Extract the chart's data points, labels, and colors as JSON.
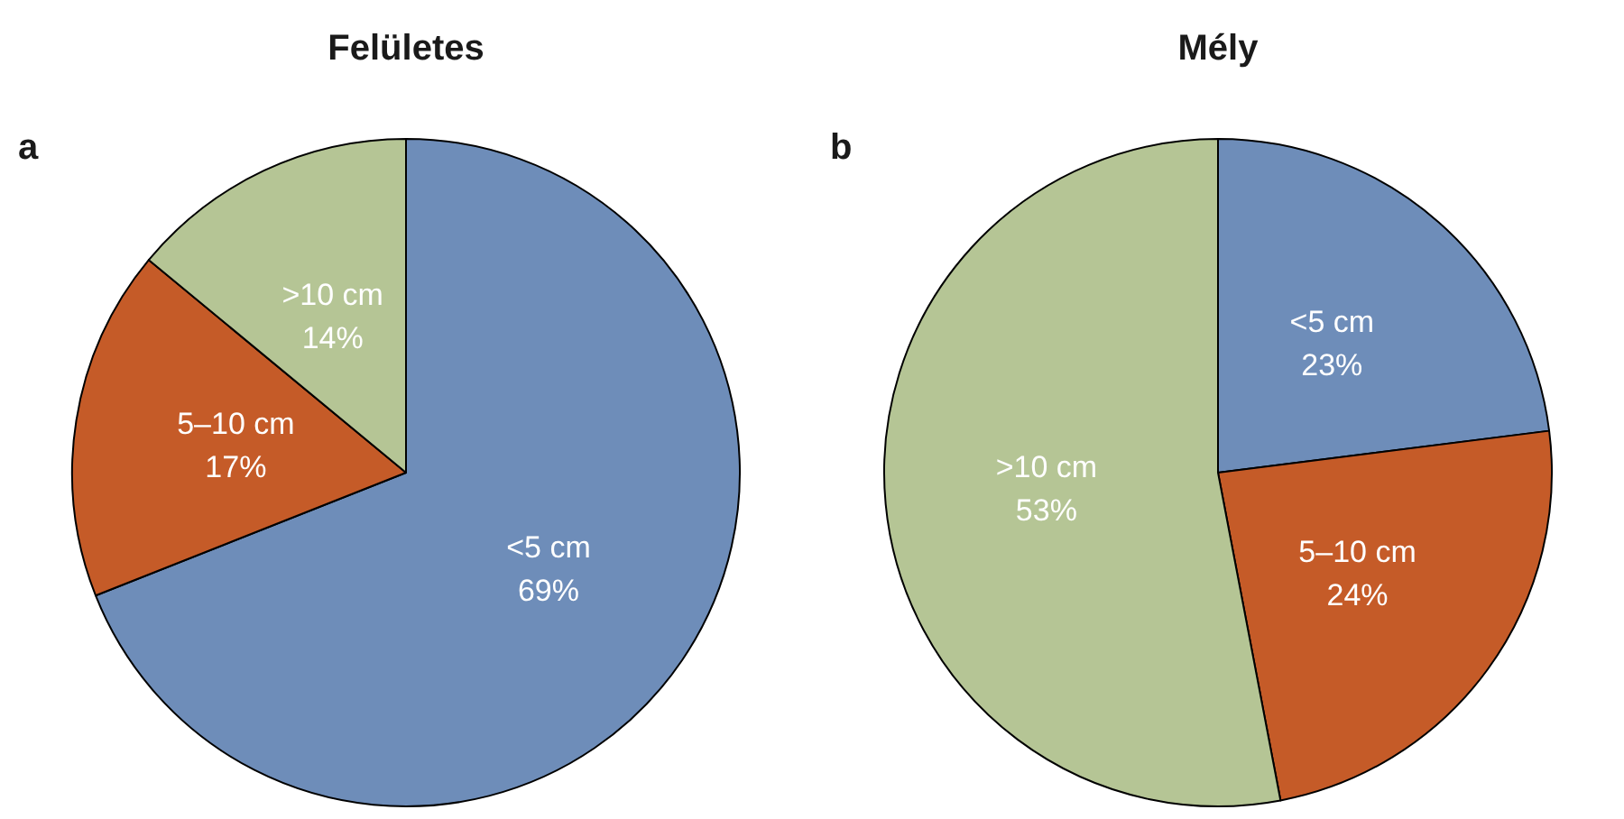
{
  "chart_data": [
    {
      "type": "pie",
      "title": "Felületes",
      "annotations": [
        "a"
      ],
      "categories": [
        "<5 cm",
        "5–10 cm",
        ">10 cm"
      ],
      "values": [
        69,
        17,
        14
      ],
      "value_labels": [
        "69%",
        "17%",
        "14%"
      ],
      "colors": [
        "#6e8db9",
        "#c55b28",
        "#b5c595"
      ]
    },
    {
      "type": "pie",
      "title": "Mély",
      "annotations": [
        "b"
      ],
      "categories": [
        "<5 cm",
        "5–10 cm",
        ">10 cm"
      ],
      "values": [
        23,
        24,
        53
      ],
      "value_labels": [
        "23%",
        "24%",
        "53%"
      ],
      "colors": [
        "#6e8db9",
        "#c55b28",
        "#b5c595"
      ]
    }
  ]
}
